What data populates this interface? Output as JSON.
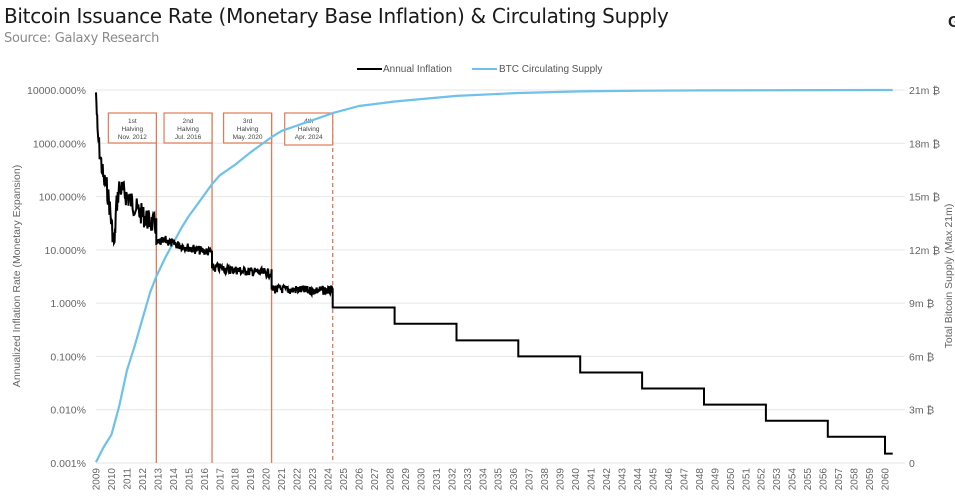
{
  "header": {
    "title": "Bitcoin Issuance Rate (Monetary Base Inflation) & Circulating Supply",
    "subtitle": "Source: Galaxy Research",
    "logo": "G"
  },
  "chart_data": {
    "type": "line",
    "title": "Bitcoin Issuance Rate (Monetary Base Inflation) & Circulating Supply",
    "subtitle": "Source: Galaxy Research",
    "xlabel": "",
    "ylabel": "Annualized Inflation Rate (Monetary Expansion)",
    "y2label": "Total Bitcoin Supply (Max 21m)",
    "x_ticks": [
      "2009",
      "2010",
      "2011",
      "2012",
      "2013",
      "2014",
      "2015",
      "2016",
      "2017",
      "2018",
      "2019",
      "2020",
      "2021",
      "2022",
      "2023",
      "2024",
      "2025",
      "2026",
      "2027",
      "2028",
      "2029",
      "2030",
      "2031",
      "2032",
      "2033",
      "2034",
      "2035",
      "2036",
      "2037",
      "2038",
      "2039",
      "2040",
      "2041",
      "2042",
      "2043",
      "2044",
      "2045",
      "2046",
      "2047",
      "2048",
      "2049",
      "2050",
      "2051",
      "2052",
      "2053",
      "2054",
      "2055",
      "2056",
      "2057",
      "2058",
      "2059",
      "2060"
    ],
    "xlim": [
      2009,
      2060.5
    ],
    "y_scale": "log",
    "ylim": [
      0.001,
      10000
    ],
    "y_ticks": [
      "10000.000%",
      "1000.000%",
      "100.000%",
      "10.000%",
      "1.000%",
      "0.100%",
      "0.010%",
      "0.001%"
    ],
    "y2lim": [
      0,
      21
    ],
    "y2_ticks": [
      "21m ₿",
      "18m ₿",
      "15m ₿",
      "12m ₿",
      "9m ₿",
      "6m ₿",
      "3m ₿",
      "0"
    ],
    "grid": true,
    "legend": {
      "position": "top-center",
      "entries": [
        {
          "name": "Annual Inflation",
          "color": "#000000"
        },
        {
          "name": "BTC Circulating Supply",
          "color": "#6ec1ea"
        }
      ]
    },
    "series": [
      {
        "name": "Annual Inflation",
        "axis": "left",
        "color": "#000000",
        "style": "step",
        "points": [
          [
            2009.0,
            9000
          ],
          [
            2009.1,
            1500
          ],
          [
            2009.3,
            500
          ],
          [
            2009.5,
            200
          ],
          [
            2009.7,
            150
          ],
          [
            2009.9,
            60
          ],
          [
            2010.0,
            30
          ],
          [
            2010.2,
            12
          ],
          [
            2010.3,
            60
          ],
          [
            2010.5,
            150
          ],
          [
            2010.8,
            120
          ],
          [
            2011.0,
            100
          ],
          [
            2011.3,
            80
          ],
          [
            2011.6,
            60
          ],
          [
            2012.0,
            45
          ],
          [
            2012.4,
            35
          ],
          [
            2012.9,
            28
          ],
          [
            2012.9,
            13
          ],
          [
            2013.5,
            15
          ],
          [
            2014.0,
            13
          ],
          [
            2014.5,
            12
          ],
          [
            2015.0,
            11
          ],
          [
            2015.5,
            10
          ],
          [
            2016.0,
            9.5
          ],
          [
            2016.5,
            9
          ],
          [
            2016.5,
            4.5
          ],
          [
            2017.0,
            4.6
          ],
          [
            2017.5,
            4.3
          ],
          [
            2018.0,
            4.2
          ],
          [
            2018.5,
            4.0
          ],
          [
            2019.0,
            3.9
          ],
          [
            2019.5,
            3.8
          ],
          [
            2020.35,
            3.6
          ],
          [
            2020.35,
            1.8
          ],
          [
            2021.0,
            1.85
          ],
          [
            2021.5,
            1.75
          ],
          [
            2022.0,
            1.8
          ],
          [
            2022.5,
            1.75
          ],
          [
            2023.0,
            1.7
          ],
          [
            2023.5,
            1.75
          ],
          [
            2024.3,
            1.7
          ],
          [
            2024.3,
            0.83
          ],
          [
            2028.3,
            0.83
          ],
          [
            2028.3,
            0.41
          ],
          [
            2032.3,
            0.41
          ],
          [
            2032.3,
            0.2
          ],
          [
            2036.3,
            0.2
          ],
          [
            2036.3,
            0.1
          ],
          [
            2040.3,
            0.1
          ],
          [
            2040.3,
            0.05
          ],
          [
            2044.3,
            0.05
          ],
          [
            2044.3,
            0.025
          ],
          [
            2048.3,
            0.025
          ],
          [
            2048.3,
            0.0125
          ],
          [
            2052.3,
            0.0125
          ],
          [
            2052.3,
            0.0062
          ],
          [
            2056.3,
            0.0062
          ],
          [
            2056.3,
            0.0031
          ],
          [
            2060.0,
            0.0031
          ],
          [
            2060.0,
            0.0015
          ],
          [
            2060.5,
            0.0015
          ]
        ]
      },
      {
        "name": "BTC Circulating Supply",
        "axis": "right",
        "color": "#6ec1ea",
        "units": "million BTC",
        "points": [
          [
            2009.0,
            0.05
          ],
          [
            2009.5,
            0.9
          ],
          [
            2010.0,
            1.6
          ],
          [
            2010.5,
            3.2
          ],
          [
            2011.0,
            5.2
          ],
          [
            2011.5,
            6.6
          ],
          [
            2012.0,
            8.1
          ],
          [
            2012.5,
            9.6
          ],
          [
            2012.9,
            10.5
          ],
          [
            2013.5,
            11.6
          ],
          [
            2014.0,
            12.4
          ],
          [
            2014.5,
            13.2
          ],
          [
            2015.0,
            13.9
          ],
          [
            2015.5,
            14.5
          ],
          [
            2016.0,
            15.1
          ],
          [
            2016.5,
            15.7
          ],
          [
            2017.0,
            16.2
          ],
          [
            2018.0,
            16.8
          ],
          [
            2019.0,
            17.5
          ],
          [
            2020.35,
            18.35
          ],
          [
            2021.0,
            18.7
          ],
          [
            2022.0,
            19.0
          ],
          [
            2023.0,
            19.3
          ],
          [
            2024.3,
            19.7
          ],
          [
            2026.0,
            20.1
          ],
          [
            2028.3,
            20.35
          ],
          [
            2032.3,
            20.67
          ],
          [
            2036.3,
            20.83
          ],
          [
            2040.3,
            20.92
          ],
          [
            2044.3,
            20.96
          ],
          [
            2048.3,
            20.98
          ],
          [
            2056.3,
            20.995
          ],
          [
            2060.5,
            21.0
          ]
        ]
      }
    ],
    "annotations": [
      {
        "year": 2012.9,
        "label1": "1st",
        "label2": "Halving",
        "label3": "Nov. 2012",
        "style": "solid"
      },
      {
        "year": 2016.5,
        "label1": "2nd",
        "label2": "Halving",
        "label3": "Jul. 2016",
        "style": "solid"
      },
      {
        "year": 2020.35,
        "label1": "3rd",
        "label2": "Halving",
        "label3": "May. 2020",
        "style": "solid"
      },
      {
        "year": 2024.3,
        "label1": "4th",
        "label2": "Halving",
        "label3": "Apr. 2024",
        "style": "dashed"
      }
    ],
    "annotation_color": "#e07a55"
  }
}
